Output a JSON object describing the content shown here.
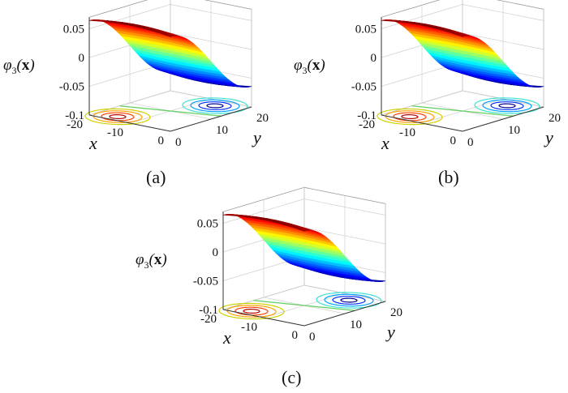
{
  "chart_data": [
    {
      "type": "surface",
      "panel": "(a)",
      "caption": "(a)",
      "zlabel": {
        "symbol": "φ",
        "sub": "3",
        "arg": "x"
      },
      "xlabel": "x",
      "ylabel": "y",
      "xticks": [
        "0",
        "-10",
        "-20"
      ],
      "yticks": [
        "0",
        "10",
        "20"
      ],
      "zticks": [
        "0.05",
        "0",
        "-0.05",
        "-0.1"
      ],
      "xlim": [
        -20,
        0
      ],
      "ylim": [
        0,
        20
      ],
      "zlim": [
        -0.1,
        0.07
      ],
      "surface_peak": 0.07,
      "surface_min": -0.07,
      "contours": true,
      "colormap": "jet",
      "grid": true
    },
    {
      "type": "surface",
      "panel": "(b)",
      "caption": "(b)",
      "zlabel": {
        "symbol": "φ",
        "sub": "3",
        "arg": "x"
      },
      "xlabel": "x",
      "ylabel": "y",
      "xticks": [
        "0",
        "-10",
        "-20"
      ],
      "yticks": [
        "0",
        "10",
        "20"
      ],
      "zticks": [
        "0.05",
        "0",
        "-0.05",
        "-0.1"
      ],
      "xlim": [
        -20,
        0
      ],
      "ylim": [
        0,
        20
      ],
      "zlim": [
        -0.1,
        0.07
      ],
      "surface_peak": 0.07,
      "surface_min": -0.07,
      "contours": true,
      "colormap": "jet",
      "grid": true
    },
    {
      "type": "surface",
      "panel": "(c)",
      "caption": "(c)",
      "zlabel": {
        "symbol": "φ",
        "sub": "3",
        "arg": "x"
      },
      "xlabel": "x",
      "ylabel": "y",
      "xticks": [
        "0",
        "-10",
        "-20"
      ],
      "yticks": [
        "0",
        "10",
        "20"
      ],
      "zticks": [
        "0.05",
        "0",
        "-0.05",
        "-0.1"
      ],
      "xlim": [
        -20,
        0
      ],
      "ylim": [
        0,
        20
      ],
      "zlim": [
        -0.1,
        0.07
      ],
      "surface_peak": 0.07,
      "surface_min": -0.07,
      "contours": true,
      "colormap": "jet",
      "grid": true
    }
  ]
}
